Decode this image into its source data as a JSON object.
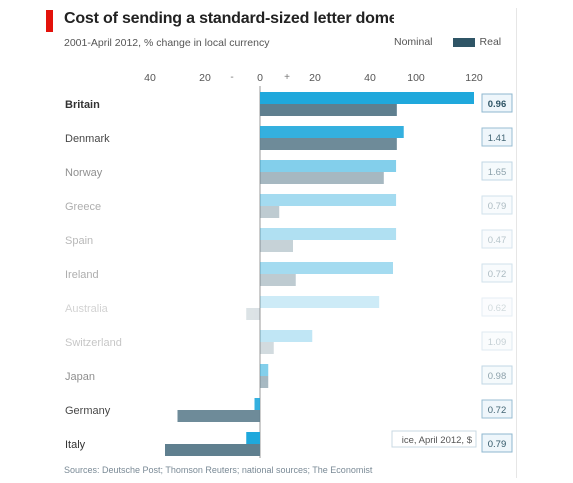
{
  "header": {
    "title": "Cost of sending a standard-sized letter domestic",
    "subtitle": "2001-April 2012, % change in local currency"
  },
  "legend": {
    "nominal_label": "Nominal",
    "real_label": "Real"
  },
  "source": "Sources: Deutsche Post; Thomson Reuters; national sources; The Economist",
  "tooltip_fragment": "ice, April 2012, $",
  "colors": {
    "accent_red": "#e3120b",
    "nominal": "#1fa8dc",
    "real": "#5f7f8f",
    "legend_real": "#2f5566"
  },
  "chart_data": {
    "type": "bar",
    "orientation": "horizontal",
    "x_ticks": [
      -40,
      -20,
      0,
      20,
      40,
      100,
      120
    ],
    "x_tick_labels": [
      "40",
      "20",
      "0",
      "20",
      "40",
      "100",
      "120"
    ],
    "sign_markers": [
      "-",
      "+"
    ],
    "categories": [
      "Britain",
      "Denmark",
      "Norway",
      "Greece",
      "Spain",
      "Ireland",
      "Australia",
      "Switzerland",
      "Japan",
      "Germany",
      "Italy"
    ],
    "series": [
      {
        "name": "Nominal",
        "values": [
          120,
          84,
          74,
          74,
          74,
          70,
          52,
          19,
          3,
          -2,
          -5
        ]
      },
      {
        "name": "Real",
        "values": [
          75,
          75,
          58,
          7,
          12,
          13,
          -5,
          5,
          3,
          -30,
          -55
        ]
      }
    ],
    "price_2012_usd": [
      "0.96",
      "1.41",
      "1.65",
      "0.79",
      "0.47",
      "0.72",
      "0.62",
      "1.09",
      "0.98",
      "0.72",
      "0.79"
    ],
    "row_opacity": [
      1,
      0.9,
      0.55,
      0.4,
      0.35,
      0.4,
      0.22,
      0.28,
      0.55,
      0.9,
      1
    ],
    "scale_note": "axis is non-linear; ticks at labelled values"
  }
}
